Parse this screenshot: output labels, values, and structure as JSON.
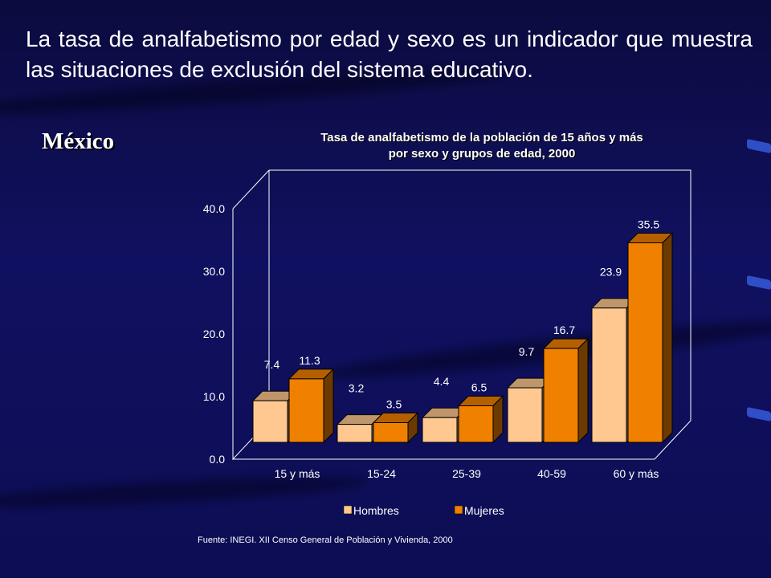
{
  "headline": "La tasa de analfabetismo por edad y sexo es un indicador que muestra las situaciones de exclusión del sistema educativo.",
  "country_label": "México",
  "source": "Fuente: INEGI. XII Censo General de Población y Vivienda, 2000",
  "colors": {
    "background": "#101060",
    "hombres": "#ffc890",
    "mujeres": "#f08000",
    "text": "#ffffff"
  },
  "chart_data": {
    "type": "bar",
    "title": "Tasa de analfabetismo de la población de 15 años y más",
    "subtitle": "por sexo y grupos de edad, 2000",
    "categories": [
      "15 y más",
      "15-24",
      "25-39",
      "40-59",
      "60 y más"
    ],
    "series": [
      {
        "name": "Hombres",
        "values": [
          7.4,
          3.2,
          4.4,
          9.7,
          23.9
        ]
      },
      {
        "name": "Mujeres",
        "values": [
          11.3,
          3.5,
          6.5,
          16.7,
          35.5
        ]
      }
    ],
    "yticks": [
      "0.0",
      "10.0",
      "20.0",
      "30.0",
      "40.0"
    ],
    "ylim": [
      0,
      40
    ],
    "legend_position": "bottom",
    "style": "3d-bar"
  }
}
